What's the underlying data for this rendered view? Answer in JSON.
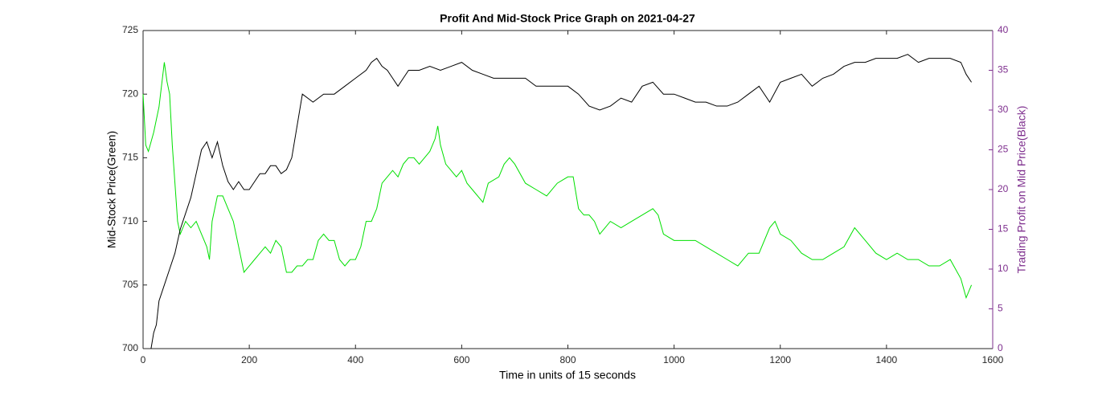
{
  "chart_data": {
    "type": "line",
    "title": "Profit And Mid-Stock Price Graph on 2021-04-27",
    "xlabel": "Time in units of 15 seconds",
    "ylabel": "Mid-Stock Price(Green)",
    "y2label": "Trading Profit on Mid Price(Black)",
    "y2_color": "#7e2f8e",
    "xlim": [
      0,
      1600
    ],
    "xticks": [
      0,
      200,
      400,
      600,
      800,
      1000,
      1200,
      1400,
      1600
    ],
    "ylim": [
      700,
      725
    ],
    "yticks": [
      700,
      705,
      710,
      715,
      720,
      725
    ],
    "y2lim": [
      0,
      40
    ],
    "y2ticks": [
      0,
      5,
      10,
      15,
      20,
      25,
      30,
      35,
      40
    ],
    "series": [
      {
        "name": "Mid-Stock Price",
        "color": "#00e000",
        "axis": "y",
        "x": [
          0,
          5,
          10,
          20,
          30,
          40,
          45,
          50,
          55,
          60,
          65,
          70,
          80,
          90,
          100,
          110,
          120,
          125,
          130,
          140,
          150,
          160,
          170,
          180,
          190,
          200,
          210,
          220,
          230,
          240,
          250,
          260,
          270,
          280,
          290,
          300,
          310,
          320,
          330,
          340,
          350,
          360,
          370,
          380,
          390,
          400,
          410,
          420,
          430,
          440,
          450,
          460,
          470,
          480,
          490,
          500,
          510,
          520,
          530,
          540,
          550,
          555,
          560,
          570,
          580,
          590,
          600,
          610,
          620,
          640,
          650,
          670,
          680,
          690,
          700,
          720,
          740,
          760,
          780,
          800,
          810,
          820,
          830,
          840,
          850,
          860,
          870,
          880,
          900,
          920,
          940,
          960,
          970,
          980,
          1000,
          1020,
          1040,
          1060,
          1080,
          1100,
          1120,
          1140,
          1160,
          1180,
          1190,
          1200,
          1220,
          1240,
          1260,
          1280,
          1300,
          1320,
          1340,
          1360,
          1380,
          1400,
          1420,
          1440,
          1460,
          1480,
          1500,
          1520,
          1540,
          1550,
          1560
        ],
        "values": [
          720,
          716,
          715.5,
          717,
          719,
          722.5,
          721,
          720,
          716,
          713,
          710,
          709,
          710,
          709.5,
          710,
          709,
          708,
          707,
          710,
          712,
          712,
          711,
          710,
          708,
          706,
          706.5,
          707,
          707.5,
          708,
          707.5,
          708.5,
          708,
          706,
          706,
          706.5,
          706.5,
          707,
          707,
          708.5,
          709,
          708.5,
          708.5,
          707,
          706.5,
          707,
          707,
          708,
          710,
          710,
          711,
          713,
          713.5,
          714,
          713.5,
          714.5,
          715,
          715,
          714.5,
          715,
          715.5,
          716.5,
          717.5,
          716,
          714.5,
          714,
          713.5,
          714,
          713,
          712.5,
          711.5,
          713,
          713.5,
          714.5,
          715,
          714.5,
          713,
          712.5,
          712,
          713,
          713.5,
          713.5,
          711,
          710.5,
          710.5,
          710,
          709,
          709.5,
          710,
          709.5,
          710,
          710.5,
          711,
          710.5,
          709,
          708.5,
          708.5,
          708.5,
          708,
          707.5,
          707,
          706.5,
          707.5,
          707.5,
          709.5,
          710,
          709,
          708.5,
          707.5,
          707,
          707,
          707.5,
          708,
          709.5,
          708.5,
          707.5,
          707,
          707.5,
          707,
          707,
          706.5,
          706.5,
          707,
          705.5,
          704,
          705
        ]
      },
      {
        "name": "Trading Profit",
        "color": "#000000",
        "axis": "y2",
        "x": [
          15,
          20,
          25,
          30,
          40,
          50,
          60,
          70,
          80,
          90,
          100,
          110,
          120,
          130,
          140,
          150,
          160,
          170,
          180,
          190,
          200,
          210,
          220,
          230,
          240,
          250,
          260,
          270,
          280,
          290,
          300,
          320,
          340,
          360,
          380,
          400,
          420,
          430,
          440,
          450,
          460,
          470,
          480,
          490,
          500,
          520,
          540,
          560,
          580,
          600,
          620,
          640,
          660,
          680,
          700,
          720,
          740,
          760,
          780,
          800,
          820,
          840,
          860,
          880,
          900,
          920,
          940,
          960,
          980,
          1000,
          1020,
          1040,
          1060,
          1080,
          1100,
          1120,
          1140,
          1160,
          1180,
          1200,
          1220,
          1240,
          1260,
          1280,
          1300,
          1320,
          1340,
          1360,
          1380,
          1400,
          1420,
          1440,
          1460,
          1480,
          1500,
          1520,
          1540,
          1550,
          1560
        ],
        "values": [
          0,
          2,
          3,
          6,
          8,
          10,
          12,
          15,
          17,
          19,
          22,
          25,
          26,
          24,
          26,
          23,
          21,
          20,
          21,
          20,
          20,
          21,
          22,
          22,
          23,
          23,
          22,
          22.5,
          24,
          28,
          32,
          31,
          32,
          32,
          33,
          34,
          35,
          36,
          36.5,
          35.5,
          35,
          34,
          33,
          34,
          35,
          35,
          35.5,
          35,
          35.5,
          36,
          35,
          34.5,
          34,
          34,
          34,
          34,
          33,
          33,
          33,
          33,
          32,
          30.5,
          30,
          30.5,
          31.5,
          31,
          33,
          33.5,
          32,
          32,
          31.5,
          31,
          31,
          30.5,
          30.5,
          31,
          32,
          33,
          31,
          33.5,
          34,
          34.5,
          33,
          34,
          34.5,
          35.5,
          36,
          36,
          36.5,
          36.5,
          36.5,
          37,
          36,
          36.5,
          36.5,
          36.5,
          36,
          34.5,
          33.5
        ]
      }
    ]
  }
}
